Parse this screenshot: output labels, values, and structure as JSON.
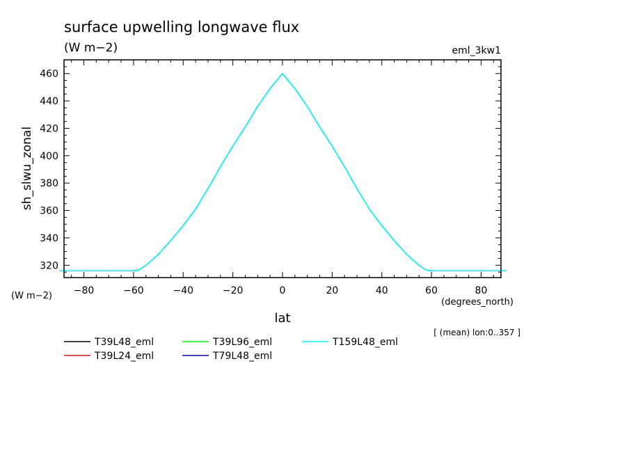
{
  "chart_data": {
    "type": "line",
    "title": "surface upwelling longwave flux",
    "subtitle": "(W m−2)",
    "run_label": "eml_3kw1",
    "ylabel": "sh_slwu_zonal",
    "ylabel_units": "(W m−2)",
    "xlabel": "lat",
    "xlabel_units": "(degrees_north)",
    "footnote": "[ (mean) lon:0..357 ]",
    "xlim": [
      -88,
      88
    ],
    "ylim": [
      311,
      470
    ],
    "x_ticks": [
      -80,
      -60,
      -40,
      -20,
      0,
      20,
      40,
      60,
      80
    ],
    "x_tick_labels": [
      "−80",
      "−60",
      "−40",
      "−20",
      "0",
      "20",
      "40",
      "60",
      "80"
    ],
    "y_ticks": [
      320,
      340,
      360,
      380,
      400,
      420,
      440,
      460
    ],
    "y_tick_labels": [
      "320",
      "340",
      "360",
      "380",
      "400",
      "420",
      "440",
      "460"
    ],
    "grid": false,
    "legend_position": "bottom",
    "x": [
      -88,
      -80,
      -70,
      -60,
      -58,
      -55,
      -50,
      -45,
      -40,
      -35,
      -30,
      -25,
      -20,
      -15,
      -10,
      -5,
      0,
      5,
      10,
      15,
      20,
      25,
      30,
      35,
      40,
      45,
      50,
      55,
      58,
      60,
      70,
      80,
      88
    ],
    "series": [
      {
        "name": "T39L48_eml",
        "color": "#000000",
        "values": [
          316,
          316,
          316,
          316,
          316.5,
          320,
          328,
          338,
          349,
          361,
          376,
          392,
          407,
          421,
          436,
          449,
          460,
          449,
          436,
          421,
          407,
          392,
          376,
          361,
          349,
          338,
          328,
          320,
          316.5,
          316,
          316,
          316,
          316
        ]
      },
      {
        "name": "T39L24_eml",
        "color": "#ff0000",
        "values": [
          316,
          316,
          316,
          316,
          316.5,
          320,
          328,
          338,
          349,
          361,
          376,
          392,
          407,
          421,
          436,
          449,
          460,
          449,
          436,
          421,
          407,
          392,
          376,
          361,
          349,
          338,
          328,
          320,
          316.5,
          316,
          316,
          316,
          316
        ]
      },
      {
        "name": "T39L96_eml",
        "color": "#00ff00",
        "values": [
          316,
          316,
          316,
          316,
          316.5,
          320,
          328,
          338,
          349,
          361,
          376,
          392,
          407,
          421,
          436,
          449,
          460,
          449,
          436,
          421,
          407,
          392,
          376,
          361,
          349,
          338,
          328,
          320,
          316.5,
          316,
          316,
          316,
          316
        ]
      },
      {
        "name": "T79L48_eml",
        "color": "#0000c8",
        "values": [
          316,
          316,
          316,
          316,
          316.5,
          320,
          328,
          338,
          349,
          361,
          376,
          392,
          407,
          421,
          436,
          449,
          460,
          449,
          436,
          421,
          407,
          392,
          376,
          361,
          349,
          338,
          328,
          320,
          316.5,
          316,
          316,
          316,
          316
        ]
      },
      {
        "name": "T159L48_eml",
        "color": "#00ffff",
        "values": [
          316,
          316,
          316,
          316,
          316.5,
          320,
          328,
          338,
          349,
          361,
          376,
          392,
          407,
          421,
          436,
          449,
          460,
          449,
          436,
          421,
          407,
          392,
          376,
          361,
          349,
          338,
          328,
          320,
          316.5,
          316,
          316,
          316,
          316
        ]
      }
    ]
  }
}
